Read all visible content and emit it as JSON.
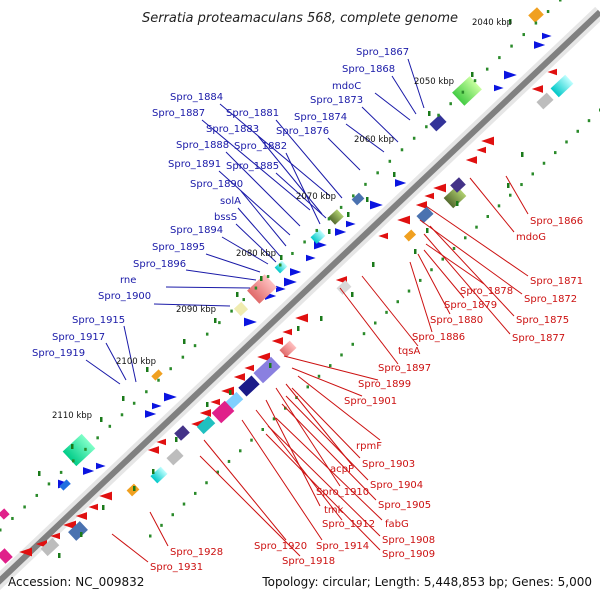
{
  "title": "Serratia proteamaculans 568, complete genome",
  "footer": {
    "accession": "Accession: NC_009832",
    "topology": "Topology: circular; Length: 5,448,853 bp; Genes: 5,000"
  },
  "kbp_labels": [
    "2040 kbp",
    "2050 kbp",
    "2060 kbp",
    "2070 kbp",
    "2080 kbp",
    "2090 kbp",
    "2100 kbp",
    "2110 kbp"
  ],
  "left_labels": [
    "Spro_1867",
    "Spro_1868",
    "mdoC",
    "Spro_1873",
    "Spro_1874",
    "Spro_1876",
    "Spro_1884",
    "Spro_1881",
    "Spro_1887",
    "Spro_1883",
    "Spro_1888",
    "Spro_1882",
    "Spro_1891",
    "Spro_1885",
    "Spro_1890",
    "solA",
    "bssS",
    "Spro_1894",
    "Spro_1895",
    "Spro_1896",
    "rne",
    "Spro_1900",
    "Spro_1915",
    "Spro_1917",
    "Spro_1919"
  ],
  "right_labels": [
    "Spro_1866",
    "mdoG",
    "Spro_1871",
    "Spro_1872",
    "Spro_1878",
    "Spro_1875",
    "Spro_1879",
    "Spro_1877",
    "Spro_1880",
    "Spro_1886",
    "tqsA",
    "Spro_1897",
    "Spro_1899",
    "Spro_1901",
    "rpmF",
    "Spro_1903",
    "acpP",
    "Spro_1904",
    "Spro_1910",
    "Spro_1905",
    "tmk",
    "fabG",
    "Spro_1912",
    "Spro_1908",
    "Spro_1920",
    "Spro_1914",
    "Spro_1909",
    "Spro_1928",
    "Spro_1918",
    "Spro_1931"
  ],
  "colors": {
    "left_label": "#1a1aa8",
    "right_label": "#cc1111",
    "backbone": "#808080"
  }
}
